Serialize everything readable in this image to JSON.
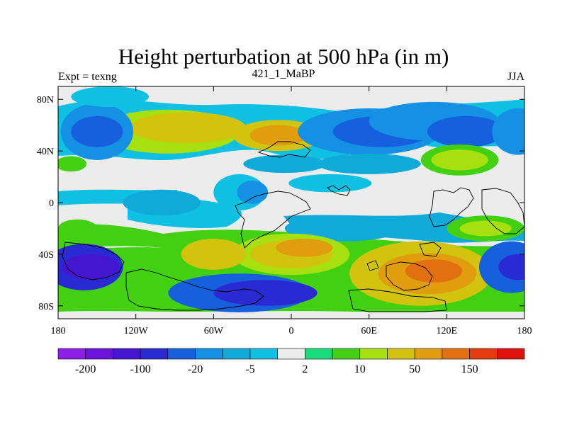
{
  "chart_data": {
    "type": "heatmap",
    "title": "Height perturbation at 500 hPa (in m)",
    "left_string": "Expt = texng",
    "center_string": "421_1_MaBP",
    "right_string": "JJA",
    "x_range": [
      -180,
      180
    ],
    "y_range": [
      -90,
      90
    ],
    "x_ticks": [
      {
        "value": -180,
        "label": "180"
      },
      {
        "value": -120,
        "label": "120W"
      },
      {
        "value": -60,
        "label": "60W"
      },
      {
        "value": 0,
        "label": "0"
      },
      {
        "value": 60,
        "label": "60E"
      },
      {
        "value": 120,
        "label": "120E"
      },
      {
        "value": 180,
        "label": "180"
      }
    ],
    "y_ticks": [
      {
        "value": 80,
        "label": "80N"
      },
      {
        "value": 40,
        "label": "40N"
      },
      {
        "value": 0,
        "label": "0"
      },
      {
        "value": -40,
        "label": "40S"
      },
      {
        "value": -80,
        "label": "80S"
      }
    ],
    "colorbar": {
      "colors": [
        "#8c1ee8",
        "#6a14de",
        "#4416d0",
        "#2a2ad2",
        "#1660de",
        "#1490e4",
        "#10aad8",
        "#10c0e2",
        "#ececec",
        "#16dc7c",
        "#42d010",
        "#a6e00e",
        "#d2c40e",
        "#e09e0e",
        "#e27010",
        "#e83c10",
        "#e01010"
      ],
      "labels": [
        {
          "boundary": 1,
          "text": "-200"
        },
        {
          "boundary": 3,
          "text": "-100"
        },
        {
          "boundary": 5,
          "text": "-20"
        },
        {
          "boundary": 7,
          "text": "-5"
        },
        {
          "boundary": 9,
          "text": "2"
        },
        {
          "boundary": 11,
          "text": "10"
        },
        {
          "boundary": 13,
          "text": "50"
        },
        {
          "boundary": 15,
          "text": "150"
        }
      ]
    },
    "field_blobs": [
      {
        "lon": -95,
        "lat": 55,
        "rx": 55,
        "ry": 17,
        "color": "#a6e00e"
      },
      {
        "lon": -80,
        "lat": 58,
        "rx": 45,
        "ry": 12,
        "color": "#d2c40e"
      },
      {
        "lon": -10,
        "lat": 52,
        "rx": 35,
        "ry": 12,
        "color": "#d2c40e"
      },
      {
        "lon": -10,
        "lat": 52,
        "rx": 22,
        "ry": 8,
        "color": "#e09e0e"
      },
      {
        "lon": -150,
        "lat": 55,
        "rx": 28,
        "ry": 22,
        "color": "#1490e4"
      },
      {
        "lon": -150,
        "lat": 55,
        "rx": 20,
        "ry": 12,
        "color": "#1660de"
      },
      {
        "lon": -140,
        "lat": 82,
        "rx": 30,
        "ry": 8,
        "color": "#10c0e2"
      },
      {
        "lon": 60,
        "lat": 55,
        "rx": 55,
        "ry": 18,
        "color": "#1490e4"
      },
      {
        "lon": 70,
        "lat": 55,
        "rx": 38,
        "ry": 12,
        "color": "#1660de"
      },
      {
        "lon": 110,
        "lat": 63,
        "rx": 50,
        "ry": 15,
        "color": "#1490e4"
      },
      {
        "lon": 135,
        "lat": 55,
        "rx": 30,
        "ry": 12,
        "color": "#1660de"
      },
      {
        "lon": 175,
        "lat": 55,
        "rx": 20,
        "ry": 18,
        "color": "#1490e4"
      },
      {
        "lon": 130,
        "lat": 33,
        "rx": 30,
        "ry": 12,
        "color": "#42d010"
      },
      {
        "lon": 130,
        "lat": 33,
        "rx": 22,
        "ry": 8,
        "color": "#a6e00e"
      },
      {
        "lon": -170,
        "lat": 30,
        "rx": 12,
        "ry": 6,
        "color": "#42d010"
      },
      {
        "lon": -5,
        "lat": 30,
        "rx": 32,
        "ry": 7,
        "color": "#10aad8"
      },
      {
        "lon": 60,
        "lat": 30,
        "rx": 40,
        "ry": 8,
        "color": "#10aad8"
      },
      {
        "lon": -40,
        "lat": 8,
        "rx": 20,
        "ry": 14,
        "color": "#10c0e2"
      },
      {
        "lon": -30,
        "lat": 8,
        "rx": 12,
        "ry": 9,
        "color": "#1490e4"
      },
      {
        "lon": 30,
        "lat": 15,
        "rx": 32,
        "ry": 7,
        "color": "#10c0e2"
      },
      {
        "lon": -100,
        "lat": 0,
        "rx": 30,
        "ry": 10,
        "color": "#10aad8"
      },
      {
        "lon": 150,
        "lat": -20,
        "rx": 30,
        "ry": 10,
        "color": "#42d010"
      },
      {
        "lon": 150,
        "lat": -20,
        "rx": 20,
        "ry": 6,
        "color": "#a6e00e"
      },
      {
        "lon": -165,
        "lat": -20,
        "rx": 15,
        "ry": 7,
        "color": "#42d010"
      },
      {
        "lon": 40,
        "lat": -20,
        "rx": 45,
        "ry": 10,
        "color": "#10aad8"
      },
      {
        "lon": 0,
        "lat": -40,
        "rx": 45,
        "ry": 16,
        "color": "#a6e00e"
      },
      {
        "lon": 0,
        "lat": -40,
        "rx": 32,
        "ry": 11,
        "color": "#d2c40e"
      },
      {
        "lon": 10,
        "lat": -35,
        "rx": 22,
        "ry": 7,
        "color": "#e09e0e"
      },
      {
        "lon": -60,
        "lat": -40,
        "rx": 25,
        "ry": 12,
        "color": "#d2c40e"
      },
      {
        "lon": -160,
        "lat": -50,
        "rx": 30,
        "ry": 18,
        "color": "#2a2ad2"
      },
      {
        "lon": -155,
        "lat": -50,
        "rx": 22,
        "ry": 10,
        "color": "#4416d0"
      },
      {
        "lon": -40,
        "lat": -70,
        "rx": 55,
        "ry": 15,
        "color": "#1660de"
      },
      {
        "lon": -20,
        "lat": -70,
        "rx": 40,
        "ry": 10,
        "color": "#2a2ad2"
      },
      {
        "lon": 100,
        "lat": -55,
        "rx": 55,
        "ry": 25,
        "color": "#d2c40e"
      },
      {
        "lon": 105,
        "lat": -55,
        "rx": 38,
        "ry": 16,
        "color": "#e09e0e"
      },
      {
        "lon": 110,
        "lat": -53,
        "rx": 22,
        "ry": 9,
        "color": "#e27010"
      },
      {
        "lon": 170,
        "lat": -50,
        "rx": 25,
        "ry": 20,
        "color": "#1660de"
      },
      {
        "lon": 175,
        "lat": -50,
        "rx": 15,
        "ry": 10,
        "color": "#2a2ad2"
      }
    ]
  }
}
